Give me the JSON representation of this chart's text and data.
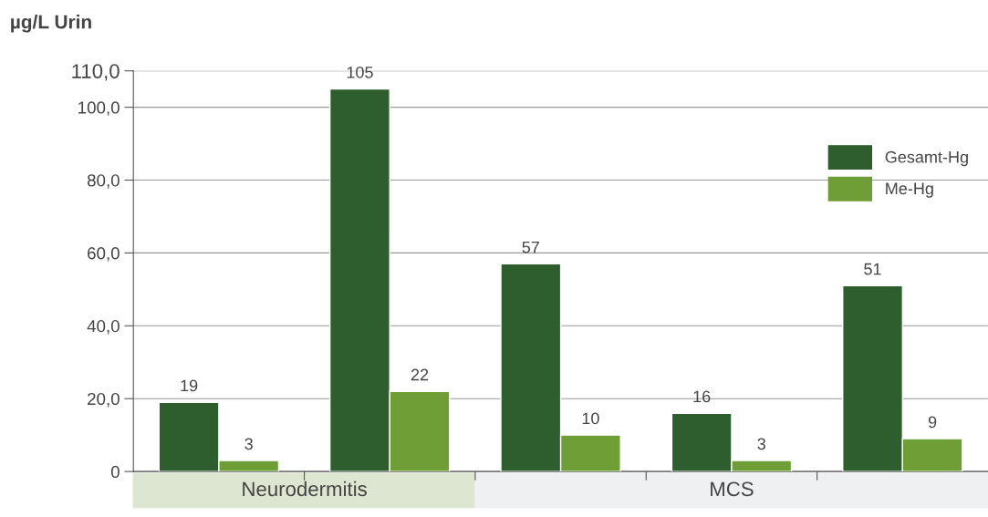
{
  "chart_data": {
    "type": "bar",
    "ylabel": "µg/L Urin",
    "categories": [
      null,
      null,
      null,
      null,
      null
    ],
    "series": [
      {
        "name": "Gesamt-Hg",
        "color": "#2e5e2e",
        "values": [
          19,
          105,
          57,
          16,
          51
        ]
      },
      {
        "name": "Me-Hg",
        "color": "#6e9e35",
        "values": [
          3,
          22,
          10,
          3,
          9
        ]
      }
    ],
    "ylim": [
      0,
      110
    ],
    "yticks": [
      {
        "value": 0,
        "label": "0"
      },
      {
        "value": 20,
        "label": "20,0"
      },
      {
        "value": 40,
        "label": "40,0"
      },
      {
        "value": 60,
        "label": "60,0"
      },
      {
        "value": 80,
        "label": "80,0"
      },
      {
        "value": 100,
        "label": "100,0"
      },
      {
        "value": 110,
        "label": "110,0"
      }
    ],
    "grid": "y",
    "legend": "top right",
    "data_labels": true,
    "annotations": [
      "Neurodermitis",
      "MCS"
    ]
  }
}
